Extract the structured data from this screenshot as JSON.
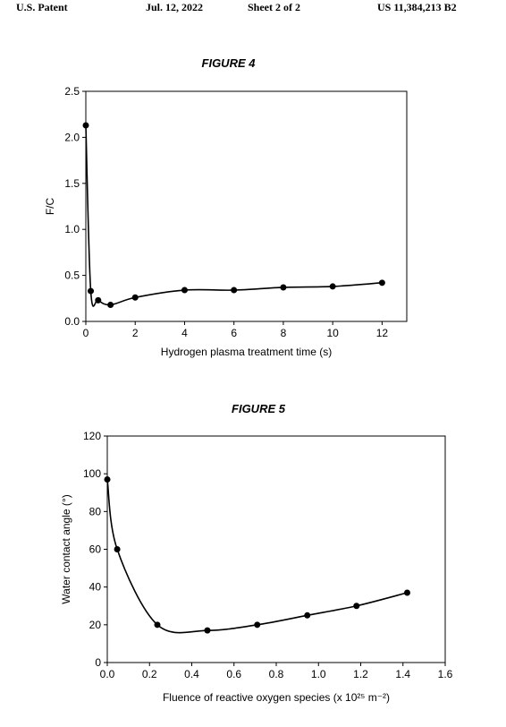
{
  "header": {
    "left": "U.S. Patent",
    "date": "Jul. 12, 2022",
    "sheet": "Sheet 2 of 2",
    "number": "US 11,384,213 B2"
  },
  "chart_data": [
    {
      "type": "line",
      "title": "FIGURE 4",
      "x_label": "Hydrogen plasma treatment time (s)",
      "y_label": "F/C",
      "x": [
        0,
        0.2,
        0.5,
        1,
        2,
        4,
        6,
        8,
        10,
        12
      ],
      "series": [
        {
          "name": "F/C",
          "color": "#000000",
          "values": [
            2.13,
            0.33,
            0.23,
            0.18,
            0.26,
            0.34,
            0.34,
            0.37,
            0.38,
            0.42
          ]
        }
      ],
      "xlim": [
        0,
        13
      ],
      "xticks": [
        0,
        2,
        4,
        6,
        8,
        10,
        12
      ],
      "ylim": [
        0,
        2.5
      ],
      "yticks": [
        {
          "value": 0,
          "label": "0.0"
        },
        {
          "value": 0.5,
          "label": "0.5"
        },
        {
          "value": 1,
          "label": "1.0"
        },
        {
          "value": 1.5,
          "label": "1.5"
        },
        {
          "value": 2,
          "label": "2.0"
        },
        {
          "value": 2.5,
          "label": "2.5"
        }
      ],
      "grid": false
    },
    {
      "type": "line",
      "title": "FIGURE 5",
      "x_label": "Fluence of reactive oxygen species (x 10²⁵ m⁻²)",
      "y_label": "Water contact angle (°)",
      "x": [
        0,
        0.047,
        0.237,
        0.474,
        0.71,
        0.947,
        1.18,
        1.42
      ],
      "series": [
        {
          "name": "Water contact angle",
          "color": "#000000",
          "values": [
            97,
            60,
            20,
            17,
            20,
            25,
            30,
            37
          ]
        }
      ],
      "xlim": [
        0,
        1.6
      ],
      "xticks": [
        {
          "value": 0,
          "label": "0.0"
        },
        {
          "value": 0.2,
          "label": "0.2"
        },
        {
          "value": 0.4,
          "label": "0.4"
        },
        {
          "value": 0.6,
          "label": "0.6"
        },
        {
          "value": 0.8,
          "label": "0.8"
        },
        {
          "value": 1,
          "label": "1.0"
        },
        {
          "value": 1.2,
          "label": "1.2"
        },
        {
          "value": 1.4,
          "label": "1.4"
        },
        {
          "value": 1.6,
          "label": "1.6"
        }
      ],
      "ylim": [
        0,
        120
      ],
      "yticks": [
        0,
        20,
        40,
        60,
        80,
        100,
        120
      ],
      "grid": false
    }
  ]
}
